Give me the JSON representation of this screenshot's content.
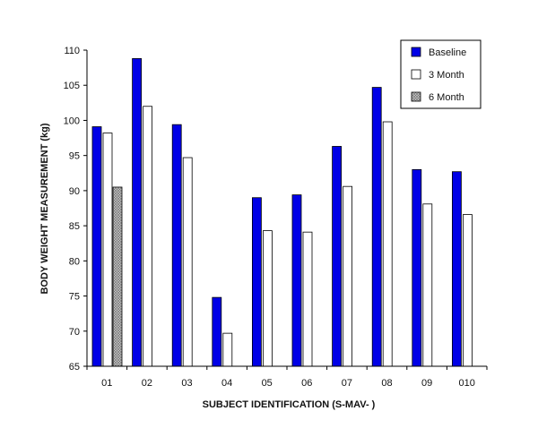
{
  "chart_data": {
    "type": "bar",
    "title": "",
    "xlabel": "SUBJECT IDENTIFICATION (S-MAV- )",
    "ylabel": "BODY WEIGHT MEASUREMENT (kg)",
    "ylim": [
      65,
      110
    ],
    "yticks": [
      65,
      70,
      75,
      80,
      85,
      90,
      95,
      100,
      105,
      110
    ],
    "grid": false,
    "legend_position": "top-right",
    "categories": [
      "01",
      "02",
      "03",
      "04",
      "05",
      "06",
      "07",
      "08",
      "09",
      "010"
    ],
    "series": [
      {
        "name": "Baseline",
        "color": "#0000e6",
        "pattern": "solid",
        "values": [
          99.1,
          108.8,
          99.4,
          74.8,
          89.0,
          89.4,
          96.3,
          104.7,
          93.0,
          92.7
        ]
      },
      {
        "name": "3 Month",
        "color": "#ffffff",
        "pattern": "solid",
        "values": [
          98.2,
          102.0,
          94.7,
          69.7,
          84.3,
          84.1,
          90.6,
          99.8,
          88.1,
          86.6
        ]
      },
      {
        "name": "6 Month",
        "color": "#b0b0b0",
        "pattern": "crosshatch",
        "values": [
          90.5,
          null,
          null,
          null,
          null,
          null,
          null,
          null,
          null,
          null
        ]
      }
    ]
  }
}
